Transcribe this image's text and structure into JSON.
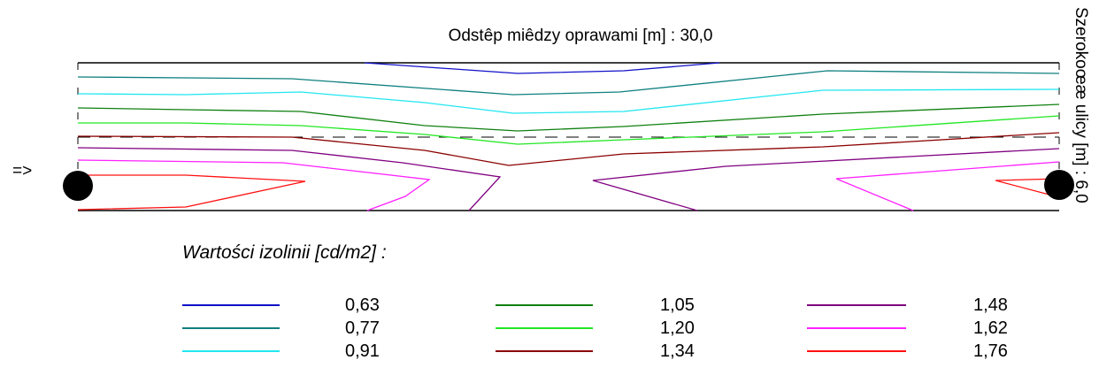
{
  "title": "Odstêp miêdzy oprawami [m] : 30,0",
  "side_label": "Szerokoœæ ulicy [m] : 6,0",
  "arrow": "=>",
  "legend_title": "Wartości izolinii [cd/m2] :",
  "chart_data": {
    "type": "contour",
    "spacing_m": "30,0",
    "width_m": "6,0",
    "isolines": [
      {
        "value": "0,63",
        "color": "#1010c8"
      },
      {
        "value": "0,77",
        "color": "#0f7f7f"
      },
      {
        "value": "0,91",
        "color": "#22e6f0"
      },
      {
        "value": "1,05",
        "color": "#108010"
      },
      {
        "value": "1,20",
        "color": "#22e622"
      },
      {
        "value": "1,34",
        "color": "#8b0000"
      },
      {
        "value": "1,48",
        "color": "#800080"
      },
      {
        "value": "1,62",
        "color": "#ff20ff"
      },
      {
        "value": "1,76",
        "color": "#ff1010"
      }
    ],
    "luminaires": [
      "left",
      "right"
    ]
  }
}
